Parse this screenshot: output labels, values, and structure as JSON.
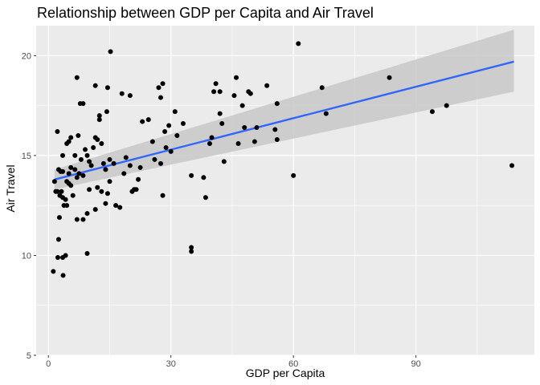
{
  "chart_data": {
    "type": "scatter",
    "title": "Relationship between GDP per Capita and Air Travel",
    "xlabel": "GDP per Capita",
    "ylabel": "Air Travel",
    "xlim": [
      -3,
      119
    ],
    "ylim": [
      5,
      21.5
    ],
    "xticks": [
      0,
      30,
      60,
      90
    ],
    "yticks": [
      5,
      10,
      15,
      20
    ],
    "grid": true,
    "legend": "none",
    "colors": {
      "panel": "#ebebeb",
      "grid_major": "#ffffff",
      "point": "#000000",
      "trend": "#3366ff",
      "ribbon": "#c8c8c8"
    },
    "trend": {
      "x": [
        1.5,
        114
      ],
      "y": [
        13.8,
        19.7
      ],
      "ci_lower": [
        13.3,
        18.2
      ],
      "ci_upper": [
        14.3,
        21.3
      ]
    },
    "points": [
      [
        1.2,
        9.2
      ],
      [
        2.3,
        9.9
      ],
      [
        3.5,
        9.9
      ],
      [
        4.2,
        10.0
      ],
      [
        3.6,
        9.0
      ],
      [
        2.5,
        10.8
      ],
      [
        2.7,
        11.9
      ],
      [
        9.5,
        10.1
      ],
      [
        1.5,
        13.7
      ],
      [
        1.8,
        13.2
      ],
      [
        2.2,
        13.2
      ],
      [
        2.8,
        13.0
      ],
      [
        3.2,
        13.2
      ],
      [
        3.5,
        12.9
      ],
      [
        3.8,
        12.5
      ],
      [
        4.2,
        12.8
      ],
      [
        4.5,
        12.5
      ],
      [
        5.0,
        13.6
      ],
      [
        5.5,
        13.5
      ],
      [
        6.0,
        13.0
      ],
      [
        2.5,
        14.3
      ],
      [
        3.0,
        14.2
      ],
      [
        3.5,
        14.2
      ],
      [
        4.5,
        13.7
      ],
      [
        5.0,
        14.1
      ],
      [
        5.5,
        14.4
      ],
      [
        6.5,
        14.3
      ],
      [
        7.0,
        13.9
      ],
      [
        7.5,
        14.1
      ],
      [
        8.0,
        14.8
      ],
      [
        2.2,
        16.2
      ],
      [
        3.5,
        15.0
      ],
      [
        4.5,
        15.6
      ],
      [
        5.0,
        15.7
      ],
      [
        5.5,
        15.9
      ],
      [
        6.5,
        15.0
      ],
      [
        7.3,
        16.0
      ],
      [
        8.5,
        14.0
      ],
      [
        9.0,
        15.3
      ],
      [
        9.5,
        15.0
      ],
      [
        10.0,
        14.7
      ],
      [
        10.5,
        14.5
      ],
      [
        11.0,
        15.4
      ],
      [
        11.5,
        15.9
      ],
      [
        12.0,
        15.8
      ],
      [
        12.5,
        16.8
      ],
      [
        13.0,
        15.6
      ],
      [
        13.5,
        14.6
      ],
      [
        14.0,
        14.3
      ],
      [
        15.0,
        14.8
      ],
      [
        16.0,
        14.6
      ],
      [
        7.0,
        18.9
      ],
      [
        7.8,
        17.6
      ],
      [
        8.5,
        17.6
      ],
      [
        11.5,
        18.5
      ],
      [
        12.5,
        17.0
      ],
      [
        14.5,
        18.4
      ],
      [
        14.3,
        17.2
      ],
      [
        15.2,
        20.2
      ],
      [
        18.0,
        18.1
      ],
      [
        20.0,
        18.0
      ],
      [
        7.0,
        11.8
      ],
      [
        8.5,
        11.8
      ],
      [
        9.5,
        12.1
      ],
      [
        10.0,
        13.3
      ],
      [
        11.5,
        12.3
      ],
      [
        12.0,
        13.4
      ],
      [
        13.0,
        13.2
      ],
      [
        14.0,
        12.6
      ],
      [
        14.5,
        13.1
      ],
      [
        15.0,
        13.7
      ],
      [
        16.5,
        12.5
      ],
      [
        17.5,
        12.4
      ],
      [
        18.5,
        14.1
      ],
      [
        19.0,
        14.9
      ],
      [
        20.0,
        14.5
      ],
      [
        20.5,
        13.2
      ],
      [
        21.0,
        13.3
      ],
      [
        21.5,
        13.3
      ],
      [
        22.0,
        13.8
      ],
      [
        22.5,
        14.4
      ],
      [
        23.0,
        16.7
      ],
      [
        24.5,
        16.8
      ],
      [
        25.5,
        15.7
      ],
      [
        26.0,
        14.8
      ],
      [
        27.0,
        18.4
      ],
      [
        27.5,
        17.9
      ],
      [
        28.0,
        18.6
      ],
      [
        28.5,
        16.2
      ],
      [
        28.0,
        13.0
      ],
      [
        27.5,
        14.6
      ],
      [
        28.8,
        15.4
      ],
      [
        29.5,
        16.5
      ],
      [
        30.0,
        15.2
      ],
      [
        31.0,
        17.2
      ],
      [
        31.5,
        16.0
      ],
      [
        33.0,
        16.6
      ],
      [
        35.0,
        14.0
      ],
      [
        35.0,
        10.4
      ],
      [
        35.0,
        10.2
      ],
      [
        38.0,
        13.9
      ],
      [
        38.5,
        12.9
      ],
      [
        39.5,
        15.6
      ],
      [
        40.0,
        15.9
      ],
      [
        40.5,
        18.2
      ],
      [
        41.0,
        18.6
      ],
      [
        42.0,
        18.2
      ],
      [
        42.0,
        17.1
      ],
      [
        42.5,
        16.6
      ],
      [
        43.0,
        14.7
      ],
      [
        45.5,
        18.0
      ],
      [
        46.0,
        18.9
      ],
      [
        46.5,
        15.6
      ],
      [
        47.5,
        17.5
      ],
      [
        48.0,
        16.4
      ],
      [
        49.0,
        18.2
      ],
      [
        49.5,
        18.1
      ],
      [
        50.5,
        15.7
      ],
      [
        51.0,
        16.4
      ],
      [
        53.5,
        18.5
      ],
      [
        55.5,
        16.3
      ],
      [
        56.0,
        15.8
      ],
      [
        56.0,
        17.6
      ],
      [
        60.0,
        14.0
      ],
      [
        61.2,
        20.6
      ],
      [
        67.0,
        18.4
      ],
      [
        68.0,
        17.1
      ],
      [
        83.5,
        18.9
      ],
      [
        94.0,
        17.2
      ],
      [
        97.5,
        17.5
      ],
      [
        113.5,
        14.5
      ]
    ]
  }
}
